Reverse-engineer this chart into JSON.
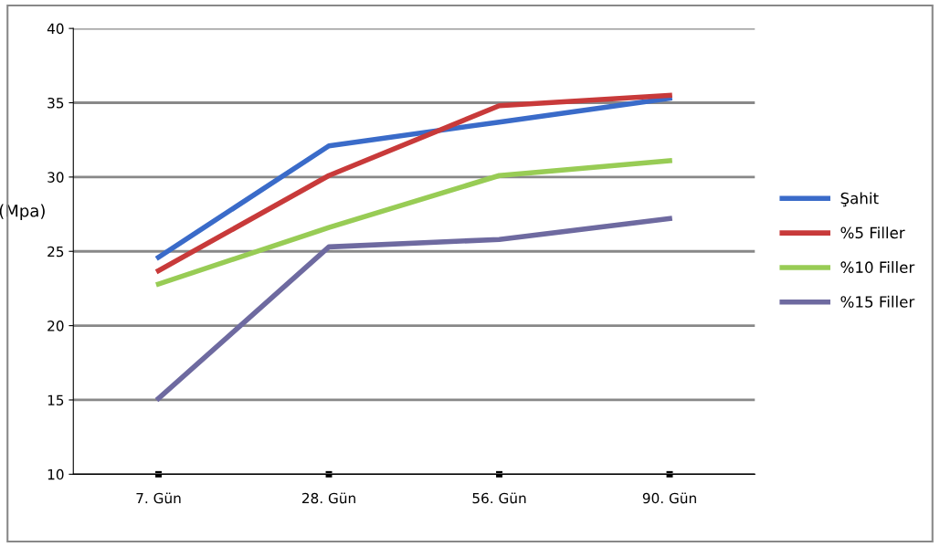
{
  "chart_data": {
    "type": "line",
    "ylabel": "(Mpa)",
    "categories": [
      "7. Gün",
      "28. Gün",
      "56. Gün",
      "90. Gün"
    ],
    "series": [
      {
        "name": "Şahit",
        "color": "#3a6bc9",
        "values": [
          24.6,
          32.1,
          33.7,
          35.3
        ]
      },
      {
        "name": "%5 Filler",
        "color": "#c83a3a",
        "values": [
          23.7,
          30.1,
          34.8,
          35.5
        ]
      },
      {
        "name": "%10 Filler",
        "color": "#98cc55",
        "values": [
          22.8,
          26.6,
          30.1,
          31.1
        ]
      },
      {
        "name": "%15 Filler",
        "color": "#6e6aa0",
        "values": [
          15.1,
          25.3,
          25.8,
          27.2
        ]
      }
    ],
    "ylim": [
      10,
      40
    ],
    "yticks": [
      10,
      15,
      20,
      25,
      30,
      35,
      40
    ],
    "grid": "y",
    "legend": "right",
    "marker": "none",
    "line_style": "solid"
  }
}
